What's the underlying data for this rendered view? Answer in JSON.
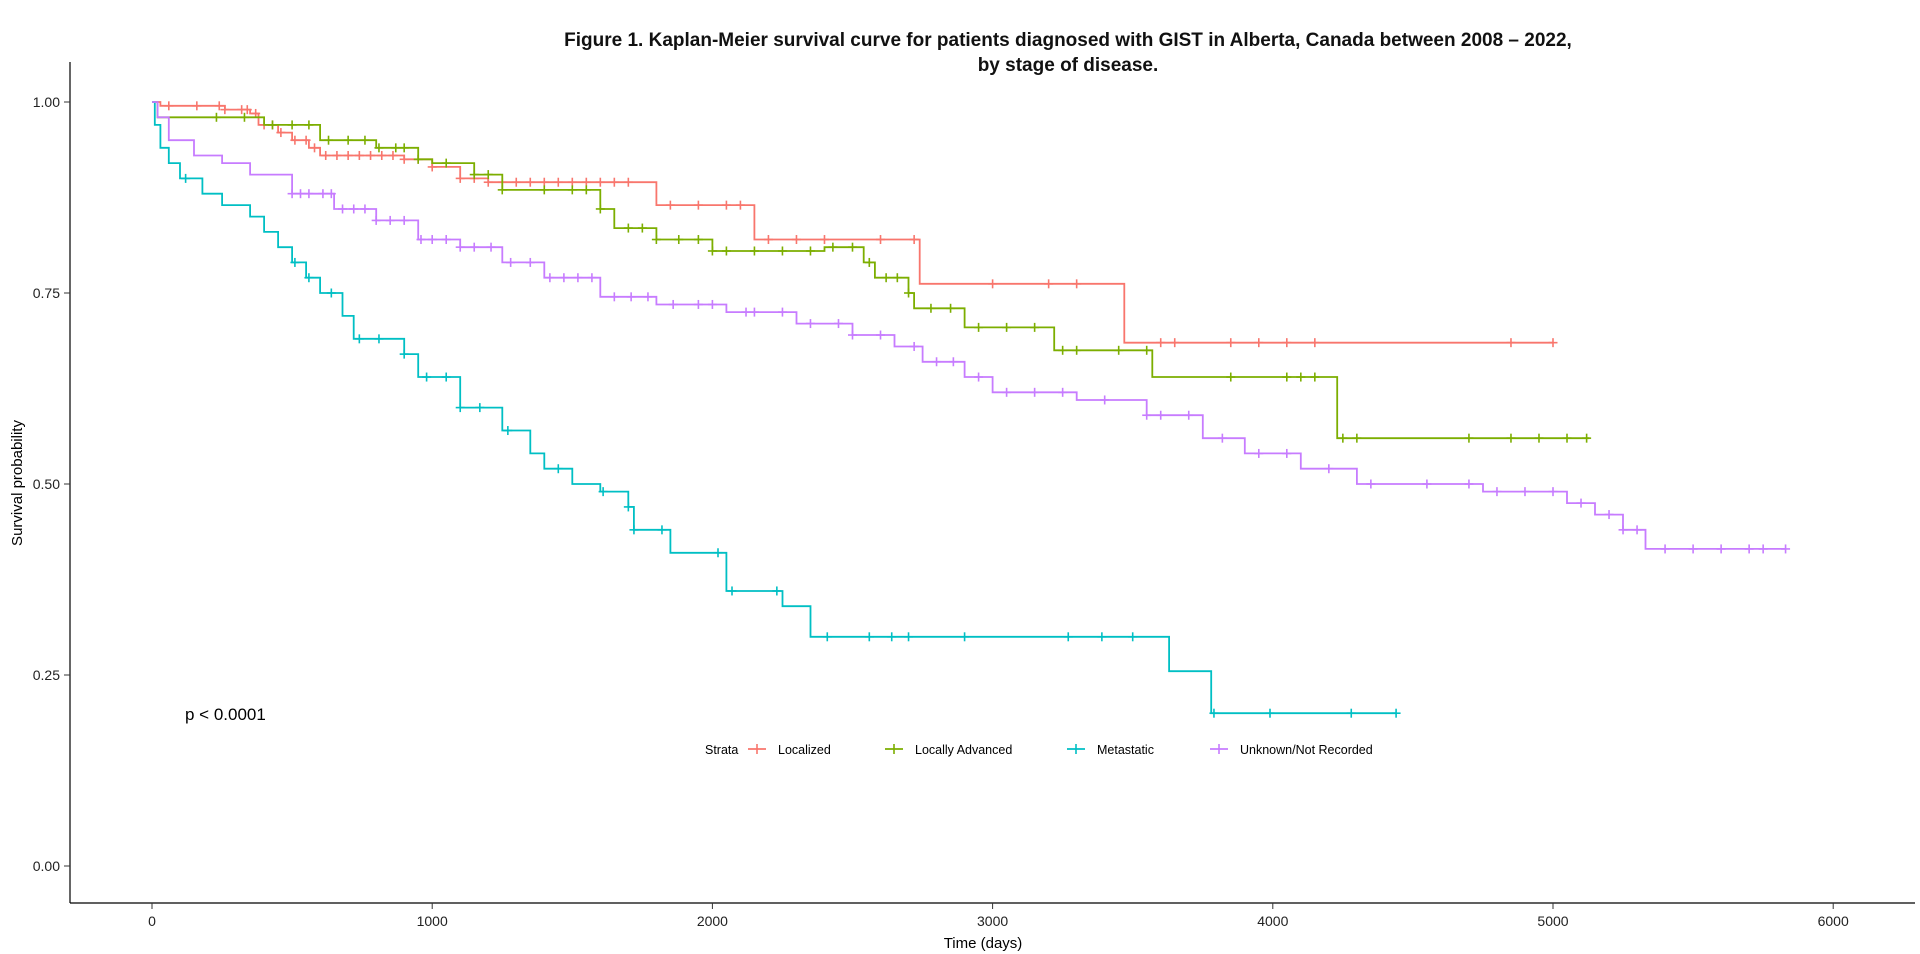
{
  "chart_data": {
    "type": "line",
    "title_line1": "Figure 1. Kaplan-Meier survival curve for patients diagnosed with GIST in Alberta, Canada between 2008 – 2022,",
    "title_line2": "by stage of disease.",
    "xlabel": "Time (days)",
    "ylabel": "Survival probability",
    "xlim": [
      -300,
      6300
    ],
    "ylim": [
      -0.05,
      1.05
    ],
    "x_ticks": [
      0,
      1000,
      2000,
      3000,
      4000,
      5000,
      6000
    ],
    "x_tick_labels": [
      "0",
      "1000",
      "2000",
      "3000",
      "4000",
      "5000",
      "6000"
    ],
    "y_ticks": [
      0,
      0.25,
      0.5,
      0.75,
      1.0
    ],
    "y_tick_labels": [
      "0.00",
      "0.25",
      "0.50",
      "0.75",
      "1.00"
    ],
    "grid": false,
    "annotation": "p < 0.0001",
    "legend": {
      "position": "bottom-center",
      "title": "Strata"
    },
    "series": [
      {
        "name": "Localized",
        "color": "#F8766D",
        "steps": [
          [
            0,
            1.0
          ],
          [
            30,
            0.995
          ],
          [
            260,
            0.99
          ],
          [
            350,
            0.985
          ],
          [
            380,
            0.97
          ],
          [
            450,
            0.96
          ],
          [
            500,
            0.95
          ],
          [
            560,
            0.94
          ],
          [
            600,
            0.93
          ],
          [
            900,
            0.925
          ],
          [
            1000,
            0.915
          ],
          [
            1100,
            0.9
          ],
          [
            1200,
            0.895
          ],
          [
            1800,
            0.865
          ],
          [
            2150,
            0.82
          ],
          [
            2740,
            0.762
          ],
          [
            3470,
            0.685
          ],
          [
            5000,
            0.685
          ]
        ],
        "censor": [
          60,
          160,
          240,
          260,
          320,
          340,
          370,
          400,
          430,
          460,
          510,
          550,
          580,
          620,
          660,
          700,
          740,
          780,
          820,
          860,
          900,
          950,
          1000,
          1100,
          1150,
          1200,
          1250,
          1300,
          1350,
          1400,
          1450,
          1500,
          1550,
          1600,
          1650,
          1700,
          1850,
          1950,
          2050,
          2100,
          2200,
          2300,
          2400,
          2600,
          2720,
          3000,
          3200,
          3300,
          3600,
          3650,
          3850,
          3950,
          4050,
          4150,
          4850,
          5000
        ]
      },
      {
        "name": "Locally Advanced",
        "color": "#7CAE00",
        "steps": [
          [
            0,
            1.0
          ],
          [
            20,
            0.98
          ],
          [
            400,
            0.97
          ],
          [
            600,
            0.95
          ],
          [
            800,
            0.94
          ],
          [
            950,
            0.925
          ],
          [
            1000,
            0.92
          ],
          [
            1150,
            0.905
          ],
          [
            1250,
            0.885
          ],
          [
            1600,
            0.86
          ],
          [
            1650,
            0.835
          ],
          [
            1800,
            0.82
          ],
          [
            2000,
            0.805
          ],
          [
            2400,
            0.81
          ],
          [
            2540,
            0.79
          ],
          [
            2580,
            0.77
          ],
          [
            2700,
            0.75
          ],
          [
            2720,
            0.73
          ],
          [
            2900,
            0.705
          ],
          [
            3220,
            0.675
          ],
          [
            3570,
            0.64
          ],
          [
            4230,
            0.56
          ],
          [
            5130,
            0.56
          ]
        ],
        "censor": [
          230,
          330,
          430,
          500,
          560,
          630,
          700,
          760,
          810,
          870,
          900,
          950,
          1050,
          1150,
          1200,
          1250,
          1400,
          1500,
          1550,
          1600,
          1700,
          1750,
          1800,
          1880,
          1950,
          2000,
          2050,
          2150,
          2250,
          2350,
          2430,
          2500,
          2560,
          2620,
          2660,
          2700,
          2780,
          2850,
          2950,
          3050,
          3150,
          3250,
          3300,
          3450,
          3550,
          3850,
          4050,
          4100,
          4150,
          4250,
          4300,
          4700,
          4850,
          4950,
          5050,
          5120
        ]
      },
      {
        "name": "Metastatic",
        "color": "#00BFC4",
        "steps": [
          [
            0,
            1.0
          ],
          [
            10,
            0.97
          ],
          [
            30,
            0.94
          ],
          [
            60,
            0.92
          ],
          [
            100,
            0.9
          ],
          [
            180,
            0.88
          ],
          [
            250,
            0.865
          ],
          [
            350,
            0.85
          ],
          [
            400,
            0.83
          ],
          [
            450,
            0.81
          ],
          [
            500,
            0.79
          ],
          [
            550,
            0.77
          ],
          [
            600,
            0.75
          ],
          [
            680,
            0.72
          ],
          [
            720,
            0.69
          ],
          [
            900,
            0.67
          ],
          [
            950,
            0.64
          ],
          [
            1100,
            0.6
          ],
          [
            1250,
            0.57
          ],
          [
            1350,
            0.54
          ],
          [
            1400,
            0.52
          ],
          [
            1500,
            0.5
          ],
          [
            1600,
            0.49
          ],
          [
            1700,
            0.47
          ],
          [
            1720,
            0.44
          ],
          [
            1850,
            0.41
          ],
          [
            2050,
            0.36
          ],
          [
            2250,
            0.34
          ],
          [
            2350,
            0.3
          ],
          [
            3630,
            0.255
          ],
          [
            3780,
            0.2
          ],
          [
            4440,
            0.2
          ]
        ],
        "censor": [
          120,
          510,
          560,
          640,
          740,
          810,
          900,
          980,
          1050,
          1100,
          1170,
          1270,
          1450,
          1610,
          1700,
          1720,
          1820,
          2020,
          2070,
          2230,
          2410,
          2560,
          2640,
          2700,
          2900,
          3270,
          3390,
          3500,
          3790,
          3990,
          4280,
          4440
        ]
      },
      {
        "name": "Unknown/Not Recorded",
        "color": "#C77CFF",
        "steps": [
          [
            0,
            1.0
          ],
          [
            20,
            0.98
          ],
          [
            60,
            0.95
          ],
          [
            150,
            0.93
          ],
          [
            250,
            0.92
          ],
          [
            350,
            0.905
          ],
          [
            500,
            0.88
          ],
          [
            650,
            0.86
          ],
          [
            800,
            0.845
          ],
          [
            950,
            0.82
          ],
          [
            1100,
            0.81
          ],
          [
            1250,
            0.79
          ],
          [
            1400,
            0.77
          ],
          [
            1600,
            0.745
          ],
          [
            1800,
            0.735
          ],
          [
            2050,
            0.725
          ],
          [
            2300,
            0.71
          ],
          [
            2500,
            0.695
          ],
          [
            2650,
            0.68
          ],
          [
            2750,
            0.66
          ],
          [
            2900,
            0.64
          ],
          [
            3000,
            0.62
          ],
          [
            3300,
            0.61
          ],
          [
            3550,
            0.59
          ],
          [
            3750,
            0.56
          ],
          [
            3900,
            0.54
          ],
          [
            4100,
            0.52
          ],
          [
            4300,
            0.5
          ],
          [
            4750,
            0.49
          ],
          [
            5050,
            0.475
          ],
          [
            5150,
            0.46
          ],
          [
            5250,
            0.44
          ],
          [
            5330,
            0.415
          ],
          [
            5830,
            0.415
          ]
        ],
        "censor": [
          500,
          530,
          560,
          610,
          640,
          680,
          720,
          760,
          800,
          850,
          900,
          960,
          1000,
          1050,
          1100,
          1150,
          1210,
          1280,
          1350,
          1420,
          1470,
          1520,
          1570,
          1650,
          1710,
          1770,
          1860,
          1950,
          2000,
          2120,
          2150,
          2250,
          2350,
          2450,
          2500,
          2600,
          2720,
          2800,
          2860,
          2950,
          3050,
          3150,
          3250,
          3400,
          3550,
          3600,
          3700,
          3820,
          3950,
          4050,
          4200,
          4350,
          4550,
          4700,
          4800,
          4900,
          5000,
          5100,
          5200,
          5250,
          5300,
          5400,
          5500,
          5600,
          5700,
          5750,
          5830
        ]
      }
    ]
  }
}
